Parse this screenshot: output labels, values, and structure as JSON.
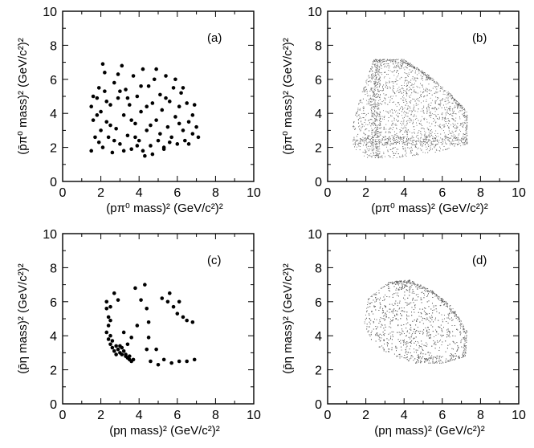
{
  "chart_data": [
    {
      "id": "a",
      "panel_label": "(a)",
      "type": "scatter",
      "style": "dots",
      "xlabel": "(pπ⁰ mass)² (GeV/c²)²",
      "ylabel": "(p̄π⁰ mass)² (GeV/c²)²",
      "xlim": [
        0,
        10
      ],
      "ylim": [
        0,
        10
      ],
      "xticks": [
        "0",
        "2",
        "4",
        "6",
        "8",
        "10"
      ],
      "yticks": [
        "0",
        "2",
        "4",
        "6",
        "8",
        "10"
      ],
      "points": [
        [
          1.5,
          4.4
        ],
        [
          1.6,
          3.6
        ],
        [
          1.7,
          2.6
        ],
        [
          1.8,
          4.9
        ],
        [
          1.9,
          5.5
        ],
        [
          2.0,
          4.1
        ],
        [
          2.0,
          3.0
        ],
        [
          2.1,
          2.0
        ],
        [
          2.2,
          6.4
        ],
        [
          2.2,
          5.3
        ],
        [
          2.3,
          3.5
        ],
        [
          2.4,
          2.6
        ],
        [
          2.5,
          4.5
        ],
        [
          2.6,
          1.7
        ],
        [
          2.7,
          5.8
        ],
        [
          2.8,
          3.1
        ],
        [
          2.9,
          4.9
        ],
        [
          3.0,
          2.2
        ],
        [
          3.1,
          6.8
        ],
        [
          3.2,
          3.9
        ],
        [
          3.3,
          5.4
        ],
        [
          3.4,
          2.7
        ],
        [
          3.5,
          4.5
        ],
        [
          3.6,
          1.9
        ],
        [
          3.7,
          6.2
        ],
        [
          3.8,
          3.4
        ],
        [
          3.9,
          5.0
        ],
        [
          4.0,
          2.4
        ],
        [
          4.1,
          4.1
        ],
        [
          4.2,
          6.6
        ],
        [
          4.3,
          1.5
        ],
        [
          4.4,
          3.0
        ],
        [
          4.5,
          5.6
        ],
        [
          4.6,
          2.1
        ],
        [
          4.7,
          4.6
        ],
        [
          4.8,
          6.0
        ],
        [
          4.9,
          3.6
        ],
        [
          5.0,
          2.4
        ],
        [
          5.1,
          5.1
        ],
        [
          5.2,
          4.2
        ],
        [
          5.3,
          2.0
        ],
        [
          5.4,
          6.2
        ],
        [
          5.5,
          3.2
        ],
        [
          5.6,
          4.7
        ],
        [
          5.7,
          2.6
        ],
        [
          5.8,
          5.5
        ],
        [
          5.9,
          3.8
        ],
        [
          6.0,
          2.2
        ],
        [
          6.1,
          4.4
        ],
        [
          6.2,
          5.2
        ],
        [
          6.3,
          3.0
        ],
        [
          6.4,
          2.4
        ],
        [
          6.5,
          4.6
        ],
        [
          6.6,
          3.5
        ],
        [
          6.8,
          2.8
        ],
        [
          6.9,
          4.5
        ],
        [
          7.0,
          3.2
        ],
        [
          7.1,
          2.6
        ],
        [
          1.5,
          1.8
        ],
        [
          1.6,
          5.0
        ],
        [
          1.8,
          3.9
        ],
        [
          1.9,
          2.3
        ],
        [
          2.1,
          6.9
        ],
        [
          2.3,
          4.7
        ],
        [
          2.5,
          3.3
        ],
        [
          2.7,
          2.4
        ],
        [
          2.9,
          6.3
        ],
        [
          3.0,
          5.3
        ],
        [
          3.2,
          1.8
        ],
        [
          3.4,
          4.9
        ],
        [
          3.6,
          3.6
        ],
        [
          3.9,
          2.1
        ],
        [
          4.1,
          5.6
        ],
        [
          4.4,
          4.4
        ],
        [
          4.6,
          3.3
        ],
        [
          4.9,
          6.6
        ],
        [
          5.1,
          2.8
        ],
        [
          5.4,
          4.9
        ],
        [
          5.6,
          2.3
        ],
        [
          5.9,
          6.0
        ],
        [
          6.1,
          3.4
        ],
        [
          6.3,
          5.5
        ],
        [
          6.6,
          2.2
        ],
        [
          6.8,
          3.9
        ],
        [
          4.7,
          1.6
        ],
        [
          4.2,
          1.8
        ],
        [
          3.8,
          2.6
        ],
        [
          5.3,
          1.9
        ]
      ]
    },
    {
      "id": "b",
      "panel_label": "(b)",
      "type": "scatter",
      "style": "dense-dots",
      "xlabel": "(pπ⁰ mass)² (GeV/c²)²",
      "ylabel": "(p̄π⁰ mass)² (GeV/c²)²",
      "xlim": [
        0,
        10
      ],
      "ylim": [
        0,
        10
      ],
      "xticks": [
        "0",
        "2",
        "4",
        "6",
        "8",
        "10"
      ],
      "yticks": [
        "0",
        "2",
        "4",
        "6",
        "8",
        "10"
      ],
      "region": {
        "boundary": [
          [
            2.4,
            7.2
          ],
          [
            4.0,
            7.2
          ],
          [
            5.3,
            6.3
          ],
          [
            6.6,
            5.0
          ],
          [
            7.3,
            4.1
          ],
          [
            7.3,
            2.2
          ],
          [
            5.5,
            1.7
          ],
          [
            3.5,
            1.4
          ],
          [
            2.0,
            1.4
          ],
          [
            1.3,
            2.0
          ],
          [
            1.3,
            3.4
          ],
          [
            1.8,
            5.3
          ]
        ],
        "vertical_band_x": 2.5,
        "horizontal_band_y": 2.4,
        "top_band_y": 7.0
      }
    },
    {
      "id": "c",
      "panel_label": "(c)",
      "type": "scatter",
      "style": "dots",
      "xlabel": "(pη mass)² (GeV/c²)²",
      "ylabel": "(p̄η mass)² (GeV/c²)²",
      "xlim": [
        0,
        10
      ],
      "ylim": [
        0,
        10
      ],
      "xticks": [
        "0",
        "2",
        "4",
        "6",
        "8",
        "10"
      ],
      "yticks": [
        "0",
        "2",
        "4",
        "6",
        "8",
        "10"
      ],
      "points": [
        [
          2.3,
          6.0
        ],
        [
          2.3,
          5.6
        ],
        [
          2.4,
          5.1
        ],
        [
          2.4,
          4.6
        ],
        [
          2.3,
          4.2
        ],
        [
          2.4,
          3.8
        ],
        [
          2.5,
          3.5
        ],
        [
          2.6,
          3.3
        ],
        [
          2.7,
          3.1
        ],
        [
          2.8,
          3.4
        ],
        [
          2.9,
          3.2
        ],
        [
          3.0,
          3.0
        ],
        [
          3.1,
          2.9
        ],
        [
          3.2,
          3.1
        ],
        [
          3.3,
          2.8
        ],
        [
          3.4,
          2.7
        ],
        [
          3.5,
          2.6
        ],
        [
          3.6,
          2.5
        ],
        [
          3.7,
          2.6
        ],
        [
          3.0,
          3.4
        ],
        [
          2.8,
          2.9
        ],
        [
          2.6,
          3.7
        ],
        [
          2.5,
          4.0
        ],
        [
          2.7,
          6.5
        ],
        [
          2.9,
          6.1
        ],
        [
          2.5,
          5.7
        ],
        [
          2.5,
          4.9
        ],
        [
          3.2,
          4.2
        ],
        [
          3.4,
          3.5
        ],
        [
          3.6,
          3.9
        ],
        [
          3.9,
          4.6
        ],
        [
          4.3,
          7.0
        ],
        [
          4.1,
          6.1
        ],
        [
          4.4,
          5.6
        ],
        [
          4.5,
          4.8
        ],
        [
          4.5,
          3.9
        ],
        [
          4.4,
          3.2
        ],
        [
          4.6,
          2.5
        ],
        [
          5.0,
          2.3
        ],
        [
          5.3,
          2.6
        ],
        [
          5.7,
          2.4
        ],
        [
          6.1,
          2.5
        ],
        [
          6.5,
          2.5
        ],
        [
          6.9,
          2.6
        ],
        [
          5.2,
          6.2
        ],
        [
          5.5,
          6.0
        ],
        [
          5.8,
          5.7
        ],
        [
          6.0,
          5.3
        ],
        [
          6.3,
          5.1
        ],
        [
          6.5,
          4.9
        ],
        [
          6.8,
          4.8
        ],
        [
          5.6,
          6.5
        ],
        [
          6.1,
          6.0
        ],
        [
          3.8,
          6.8
        ],
        [
          4.9,
          3.2
        ],
        [
          3.3,
          2.9
        ],
        [
          3.5,
          2.8
        ],
        [
          3.1,
          3.3
        ]
      ]
    },
    {
      "id": "d",
      "panel_label": "(d)",
      "type": "scatter",
      "style": "dense-dots",
      "xlabel": "(pη mass)² (GeV/c²)²",
      "ylabel": "(p̄η mass)² (GeV/c²)²",
      "xlim": [
        0,
        10
      ],
      "ylim": [
        0,
        10
      ],
      "xticks": [
        "0",
        "2",
        "4",
        "6",
        "8",
        "10"
      ],
      "yticks": [
        "0",
        "2",
        "4",
        "6",
        "8",
        "10"
      ],
      "region": {
        "boundary": [
          [
            2.1,
            6.2
          ],
          [
            3.2,
            7.2
          ],
          [
            4.3,
            7.3
          ],
          [
            5.6,
            6.6
          ],
          [
            6.6,
            5.6
          ],
          [
            7.3,
            4.3
          ],
          [
            7.2,
            2.8
          ],
          [
            6.0,
            2.4
          ],
          [
            4.6,
            2.4
          ],
          [
            3.2,
            2.9
          ],
          [
            2.3,
            3.7
          ],
          [
            1.9,
            4.7
          ]
        ],
        "top_band_y": 7.0,
        "bottom_band_y": 2.5
      }
    }
  ]
}
